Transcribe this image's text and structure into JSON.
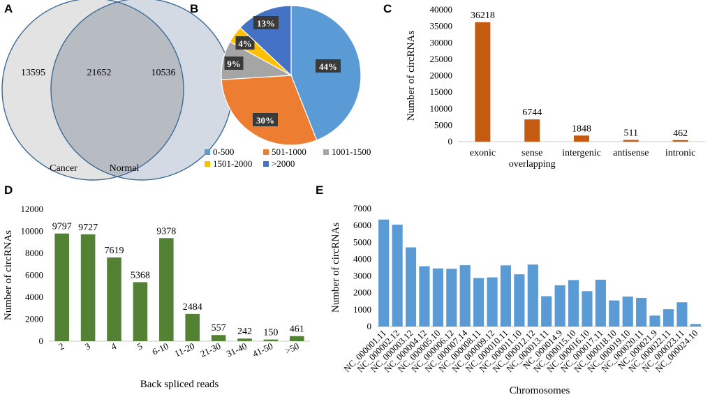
{
  "chart_data": [
    {
      "panel": "A",
      "type": "venn",
      "sets": [
        {
          "name": "Cancer",
          "only": 13595,
          "color": "#e3e3e3"
        },
        {
          "name": "Normal",
          "only": 10536,
          "color": "#d3dae4"
        }
      ],
      "intersection": 21652,
      "intersection_color": "#b7bcc3",
      "stroke_color": "#3d6a95"
    },
    {
      "panel": "B",
      "type": "pie",
      "slices": [
        {
          "label": "0-500",
          "value": 44,
          "text": "44%",
          "color": "#5b9bd5"
        },
        {
          "label": "501-1000",
          "value": 30,
          "text": "30%",
          "color": "#ed7d31"
        },
        {
          "label": "1001-1500",
          "value": 9,
          "text": "9%",
          "color": "#a5a5a5"
        },
        {
          "label": "1501-2000",
          "value": 4,
          "text": "4%",
          "color": "#ffc000"
        },
        {
          "label": ">2000",
          "value": 13,
          "text": "13%",
          "color": "#4472c4"
        }
      ],
      "legend": "bottom"
    },
    {
      "panel": "C",
      "type": "bar",
      "categories": [
        "exonic",
        "sense overlapping",
        "intergenic",
        "antisense",
        "intronic"
      ],
      "category_lines": [
        [
          "exonic"
        ],
        [
          "sense",
          "overlapping"
        ],
        [
          "intergenic"
        ],
        [
          "antisense"
        ],
        [
          "intronic"
        ]
      ],
      "values": [
        36218,
        6744,
        1848,
        511,
        462
      ],
      "ylabel": "Number of circRNAs",
      "xlabel": "",
      "ylim": [
        0,
        40000
      ],
      "yticks": [
        0,
        5000,
        10000,
        15000,
        20000,
        25000,
        30000,
        35000,
        40000
      ],
      "color": "#c55a11",
      "data_labels": true
    },
    {
      "panel": "D",
      "type": "bar",
      "categories": [
        "2",
        "3",
        "4",
        "5",
        "6-10",
        "11-20",
        "21-30",
        "31-40",
        "41-50",
        ">50"
      ],
      "values": [
        9797,
        9727,
        7619,
        5368,
        9378,
        2484,
        557,
        242,
        150,
        461
      ],
      "ylabel": "Number of circRNAs",
      "xlabel": "Back spliced reads",
      "ylim": [
        0,
        12000
      ],
      "yticks": [
        0,
        2000,
        4000,
        6000,
        8000,
        10000,
        12000
      ],
      "color": "#548235",
      "data_labels": true
    },
    {
      "panel": "E",
      "type": "bar",
      "categories": [
        "NC_000001.11",
        "NC_000002.12",
        "NC_000003.12",
        "NC_000004.12",
        "NC_000005.10",
        "NC_000006.12",
        "NC_000007.14",
        "NC_000008.11",
        "NC_000009.12",
        "NC_000010.11",
        "NC_000011.10",
        "NC_000012.12",
        "NC_000013.11",
        "NC_000014.9",
        "NC_000015.10",
        "NC_000016.10",
        "NC_000017.11",
        "NC_000018.10",
        "NC_000019.10",
        "NC_000020.11",
        "NC_000021.9",
        "NC_000022.11",
        "NC_000023.11",
        "NC_000024.10"
      ],
      "values": [
        6350,
        6050,
        4700,
        3580,
        3450,
        3430,
        3640,
        2880,
        2920,
        3630,
        3100,
        3680,
        1800,
        2450,
        2760,
        2100,
        2780,
        1550,
        1780,
        1700,
        650,
        1030,
        1440,
        150
      ],
      "ylabel": "Number of circRNAs",
      "xlabel": "Chromosomes",
      "ylim": [
        0,
        7000
      ],
      "yticks": [
        0,
        1000,
        2000,
        3000,
        4000,
        5000,
        6000,
        7000
      ],
      "color": "#5b9bd5",
      "data_labels": false
    }
  ],
  "panel_labels": [
    "A",
    "B",
    "C",
    "D",
    "E"
  ]
}
